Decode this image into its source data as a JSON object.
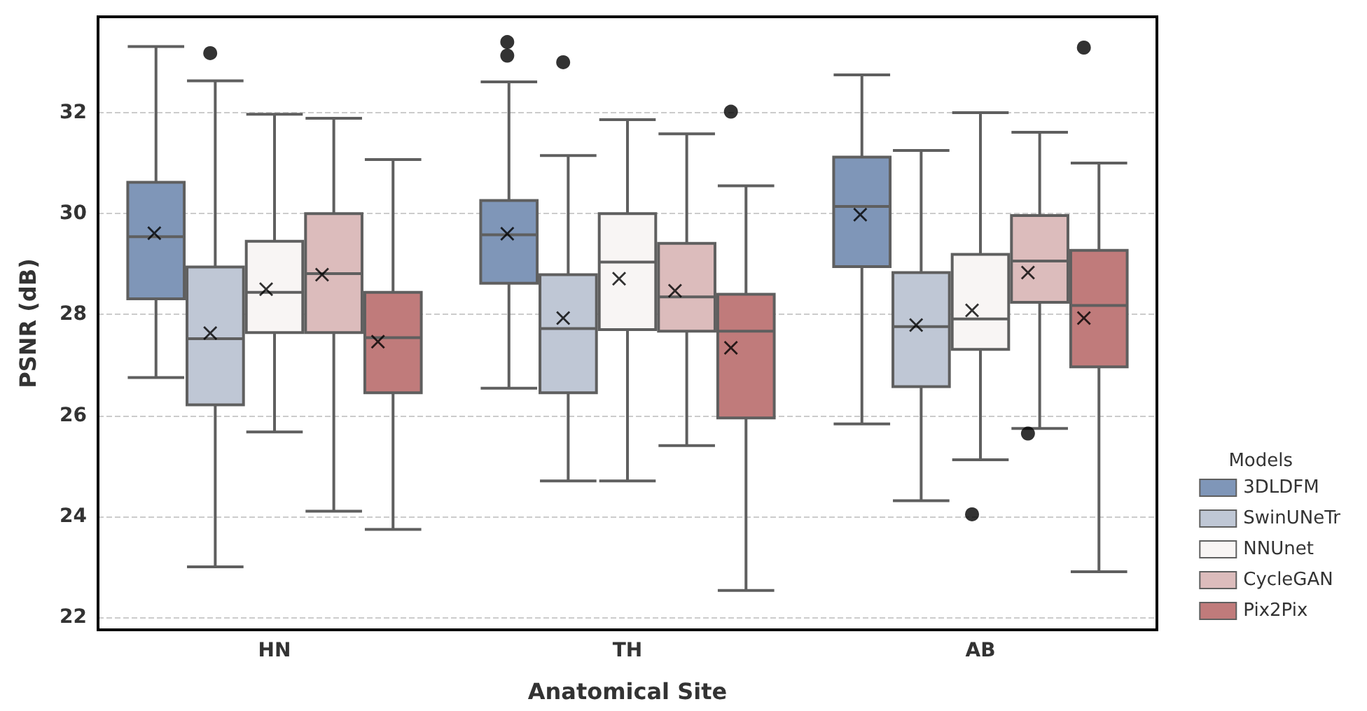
{
  "chart_data": {
    "type": "box",
    "xlabel": "Anatomical Site",
    "ylabel": "PSNR (dB)",
    "legend_title": "Models",
    "legend": "bottom right",
    "grid": "y",
    "categories": [
      "HN",
      "TH",
      "AB"
    ],
    "ylim": [
      21.75,
      33.9
    ],
    "yticks": [
      22,
      24,
      26,
      28,
      30,
      32
    ],
    "series": [
      {
        "name": "3DLDFM",
        "color": "#7f96b8",
        "boxes": [
          {
            "low": 26.75,
            "q1": 28.31,
            "median": 29.54,
            "q3": 30.62,
            "high": 33.31,
            "mean": 29.61
          },
          {
            "low": 26.54,
            "q1": 28.62,
            "median": 29.58,
            "q3": 30.26,
            "high": 32.61,
            "mean": 29.6,
            "outliers": [
              33.4,
              33.13
            ]
          },
          {
            "low": 25.83,
            "q1": 28.95,
            "median": 30.14,
            "q3": 31.12,
            "high": 32.75,
            "mean": 29.98
          }
        ]
      },
      {
        "name": "SwinUNeTr",
        "color": "#bfc7d5",
        "boxes": [
          {
            "low": 23.0,
            "q1": 26.21,
            "median": 27.52,
            "q3": 28.94,
            "high": 32.63,
            "mean": 27.63,
            "outliers": [
              33.18
            ]
          },
          {
            "low": 24.7,
            "q1": 26.45,
            "median": 27.72,
            "q3": 28.79,
            "high": 31.15,
            "mean": 27.93,
            "outliers": [
              33.0
            ]
          },
          {
            "low": 24.31,
            "q1": 26.57,
            "median": 27.76,
            "q3": 28.83,
            "high": 31.25,
            "mean": 27.79
          }
        ]
      },
      {
        "name": "NNUnet",
        "color": "#f8f5f4",
        "boxes": [
          {
            "low": 25.67,
            "q1": 27.64,
            "median": 28.44,
            "q3": 29.45,
            "high": 31.97,
            "mean": 28.5
          },
          {
            "low": 24.7,
            "q1": 27.7,
            "median": 29.04,
            "q3": 30.0,
            "high": 31.86,
            "mean": 28.71
          },
          {
            "low": 25.12,
            "q1": 27.31,
            "median": 27.91,
            "q3": 29.19,
            "high": 32.0,
            "mean": 28.08,
            "outliers": [
              24.04
            ]
          }
        ]
      },
      {
        "name": "CycleGAN",
        "color": "#dcbcbc",
        "boxes": [
          {
            "low": 24.1,
            "q1": 27.64,
            "median": 28.81,
            "q3": 30.0,
            "high": 31.89,
            "mean": 28.79
          },
          {
            "low": 25.4,
            "q1": 27.67,
            "median": 28.35,
            "q3": 29.41,
            "high": 31.58,
            "mean": 28.47
          },
          {
            "low": 25.74,
            "q1": 28.24,
            "median": 29.06,
            "q3": 29.96,
            "high": 31.61,
            "mean": 28.83,
            "outliers": [
              25.64
            ]
          }
        ]
      },
      {
        "name": "Pix2Pix",
        "color": "#c07b7b",
        "boxes": [
          {
            "low": 23.74,
            "q1": 26.45,
            "median": 27.54,
            "q3": 28.44,
            "high": 31.07,
            "mean": 27.46
          },
          {
            "low": 22.53,
            "q1": 25.95,
            "median": 27.67,
            "q3": 28.4,
            "high": 30.55,
            "mean": 27.34,
            "outliers": [
              32.02
            ]
          },
          {
            "low": 22.9,
            "q1": 26.96,
            "median": 28.18,
            "q3": 29.27,
            "high": 31.0,
            "mean": 27.93,
            "outliers": [
              33.29
            ]
          }
        ]
      }
    ]
  }
}
